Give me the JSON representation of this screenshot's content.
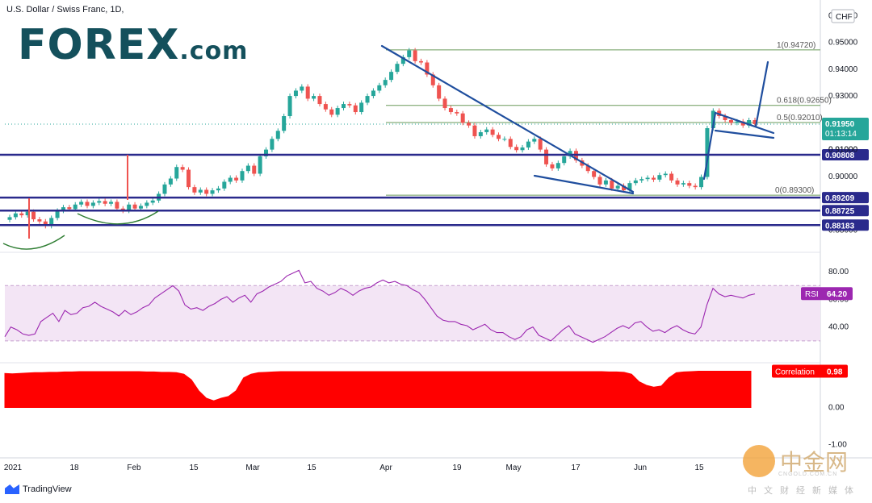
{
  "header": {
    "title": "U.S. Dollar / Swiss Franc, 1D,"
  },
  "logo": {
    "brand": "FOREX",
    "suffix": ".com"
  },
  "branding": {
    "tradingview": "TradingView",
    "watermark": "中金网",
    "watermark_sub": "CNGOLD.COM.CN",
    "watermark_caption": "中文财经新媒体"
  },
  "colors": {
    "up": "#26a69a",
    "down": "#ef5350",
    "trend": "#1f4e9e",
    "level": "#2a2a8c",
    "fib": "#6a9a5a",
    "rsi": "#9c27b0",
    "corr": "#ff0000"
  },
  "chart_data": [
    {
      "type": "candlestick",
      "title": "U.S. Dollar / Swiss Franc, 1D,",
      "currency": "CHF",
      "ylim": [
        0.878,
        0.961
      ],
      "price_ticks": [
        "0.96000",
        "0.95000",
        "0.94000",
        "0.93000",
        "0.91000",
        "0.90000",
        "0.88000"
      ],
      "x_ticks": [
        "2021",
        "18",
        "Feb",
        "15",
        "Mar",
        "15",
        "Apr",
        "19",
        "May",
        "17",
        "Jun",
        "15"
      ],
      "close_series": [
        0.8848,
        0.8862,
        0.8855,
        0.8868,
        0.884,
        0.8832,
        0.8815,
        0.8845,
        0.8872,
        0.8885,
        0.8878,
        0.8895,
        0.8905,
        0.889,
        0.8902,
        0.8908,
        0.8898,
        0.8905,
        0.888,
        0.8872,
        0.8895,
        0.888,
        0.889,
        0.8902,
        0.891,
        0.8935,
        0.897,
        0.8992,
        0.9035,
        0.9025,
        0.896,
        0.894,
        0.895,
        0.8935,
        0.8948,
        0.8955,
        0.898,
        0.8995,
        0.8985,
        0.902,
        0.904,
        0.901,
        0.9075,
        0.91,
        0.914,
        0.917,
        0.9225,
        0.93,
        0.932,
        0.9335,
        0.929,
        0.93,
        0.927,
        0.925,
        0.923,
        0.9255,
        0.927,
        0.9265,
        0.924,
        0.9275,
        0.93,
        0.932,
        0.934,
        0.936,
        0.939,
        0.942,
        0.9445,
        0.947,
        0.943,
        0.9425,
        0.938,
        0.934,
        0.929,
        0.9255,
        0.924,
        0.9235,
        0.92,
        0.919,
        0.915,
        0.9165,
        0.9175,
        0.9155,
        0.914,
        0.914,
        0.911,
        0.9098,
        0.9108,
        0.913,
        0.914,
        0.91,
        0.9045,
        0.903,
        0.905,
        0.9075,
        0.9095,
        0.906,
        0.904,
        0.902,
        0.8998,
        0.897,
        0.8985,
        0.8955,
        0.8965,
        0.8948,
        0.8975,
        0.8985,
        0.899,
        0.8995,
        0.8988,
        0.9005,
        0.901,
        0.8985,
        0.897,
        0.8975,
        0.8965,
        0.896,
        0.8998,
        0.918,
        0.9245,
        0.9225,
        0.921,
        0.92,
        0.9205,
        0.919,
        0.921,
        0.9195
      ],
      "levels": [
        {
          "label": "0.90808",
          "value": 0.90808
        },
        {
          "label": "0.89209",
          "value": 0.89209
        },
        {
          "label": "0.88725",
          "value": 0.88725
        },
        {
          "label": "0.88183",
          "value": 0.88183
        }
      ],
      "fib_levels": [
        {
          "label": "1(0.94720)",
          "value": 0.9472
        },
        {
          "label": "0.618(0.92650)",
          "value": 0.9265
        },
        {
          "label": "0.5(0.92010)",
          "value": 0.9201
        },
        {
          "label": "0(0.89300)",
          "value": 0.893
        }
      ],
      "current_price": {
        "label": "0.91950",
        "countdown": "01:13:14",
        "value": 0.9195
      },
      "hidden_tag": {
        "label": "0.91000",
        "value": 0.91
      }
    },
    {
      "type": "line",
      "title": "RSI",
      "value_label": "64.20",
      "ylim": [
        20,
        90
      ],
      "ticks": [
        "80.00",
        "60.00",
        "40.00"
      ],
      "band": [
        30,
        70
      ],
      "values": [
        33,
        40,
        38,
        35,
        34,
        35,
        44,
        47,
        50,
        44,
        52,
        49,
        50,
        54,
        55,
        58,
        55,
        53,
        51,
        48,
        52,
        49,
        51,
        54,
        56,
        61,
        64,
        67,
        70,
        66,
        56,
        53,
        54,
        52,
        55,
        57,
        60,
        62,
        58,
        61,
        63,
        58,
        64,
        66,
        69,
        71,
        73,
        77,
        79,
        81,
        72,
        73,
        68,
        66,
        63,
        65,
        68,
        66,
        63,
        66,
        68,
        69,
        72,
        74,
        72,
        73,
        71,
        70,
        67,
        65,
        60,
        54,
        48,
        45,
        44,
        44,
        42,
        41,
        38,
        40,
        42,
        38,
        36,
        36,
        33,
        31,
        33,
        38,
        40,
        34,
        32,
        30,
        34,
        38,
        41,
        35,
        33,
        31,
        29,
        31,
        33,
        36,
        39,
        41,
        39,
        43,
        44,
        40,
        37,
        38,
        36,
        39,
        41,
        38,
        36,
        35,
        40,
        56,
        68,
        64,
        62,
        63,
        62,
        61,
        63,
        64
      ]
    },
    {
      "type": "area",
      "title": "Correlation",
      "value_label": "0.98",
      "ylim": [
        -1.1,
        1.1
      ],
      "ticks": [
        "0.00",
        "-1.00"
      ],
      "values": [
        0.92,
        0.91,
        0.92,
        0.93,
        0.94,
        0.94,
        0.95,
        0.95,
        0.96,
        0.96,
        0.97,
        0.97,
        0.97,
        0.97,
        0.97,
        0.97,
        0.97,
        0.97,
        0.97,
        0.96,
        0.96,
        0.95,
        0.95,
        0.94,
        0.9,
        0.75,
        0.45,
        0.25,
        0.18,
        0.25,
        0.3,
        0.45,
        0.8,
        0.9,
        0.94,
        0.95,
        0.96,
        0.97,
        0.97,
        0.97,
        0.97,
        0.97,
        0.97,
        0.97,
        0.97,
        0.97,
        0.97,
        0.97,
        0.97,
        0.97,
        0.97,
        0.97,
        0.97,
        0.97,
        0.97,
        0.97,
        0.97,
        0.97,
        0.97,
        0.97,
        0.97,
        0.97,
        0.97,
        0.97,
        0.97,
        0.97,
        0.97,
        0.97,
        0.97,
        0.97,
        0.97,
        0.97,
        0.97,
        0.97,
        0.97,
        0.97,
        0.97,
        0.97,
        0.97,
        0.97,
        0.97,
        0.96,
        0.96,
        0.95,
        0.9,
        0.7,
        0.6,
        0.55,
        0.58,
        0.8,
        0.94,
        0.96,
        0.97,
        0.98,
        0.98,
        0.98,
        0.98,
        0.98,
        0.98,
        0.98,
        0.98
      ]
    }
  ]
}
